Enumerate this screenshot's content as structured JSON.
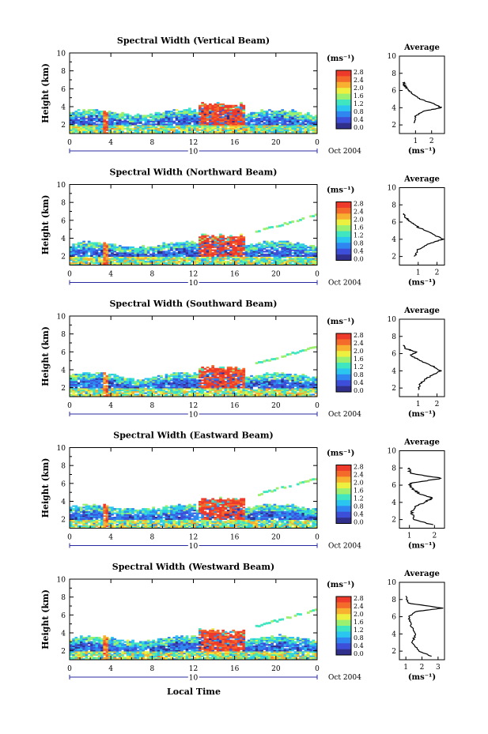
{
  "figure": {
    "xlabel": "Local Time",
    "ylabel": "Height (km)",
    "date_label": "Oct 2004",
    "day_label": "10",
    "units_label": "(ms⁻¹)",
    "profile_title": "Average",
    "profile_xlabel": "(ms⁻¹)",
    "x_ticks": [
      "0",
      "4",
      "8",
      "12",
      "16",
      "20",
      "0"
    ],
    "y_ticks": [
      "2",
      "4",
      "6",
      "8",
      "10"
    ],
    "profile_y_ticks": [
      "2",
      "4",
      "6",
      "8",
      "10"
    ],
    "colorbar_ticks": [
      "0.0",
      "0.4",
      "0.8",
      "1.2",
      "1.6",
      "2.0",
      "2.4",
      "2.8"
    ],
    "colors": {
      "scale": [
        "#30308c",
        "#3d4fd8",
        "#2f86f0",
        "#2bc6f0",
        "#40e6c0",
        "#9cf070",
        "#eef040",
        "#f8b030",
        "#f46a2a",
        "#ee3a2a"
      ],
      "clipped": "#ee3a2a"
    }
  },
  "chart_data": [
    {
      "type": "heatmap",
      "title": "Spectral Width (Vertical Beam)",
      "x_range": [
        0,
        24
      ],
      "y_range": [
        1,
        10
      ],
      "z_range": [
        0.0,
        2.8
      ],
      "profile": {
        "title": "Average",
        "x_ticks": [
          "1",
          "2"
        ],
        "x_range": [
          0,
          2.8
        ],
        "points": [
          [
            0.9,
            2.2
          ],
          [
            1.0,
            3.0
          ],
          [
            1.5,
            3.6
          ],
          [
            2.6,
            4.0
          ],
          [
            2.2,
            4.4
          ],
          [
            1.3,
            5.0
          ],
          [
            0.8,
            5.6
          ],
          [
            0.5,
            6.2
          ],
          [
            0.3,
            6.6
          ],
          [
            0.3,
            7.0
          ]
        ]
      }
    },
    {
      "type": "heatmap",
      "title": "Spectral Width (Northward Beam)",
      "x_range": [
        0,
        24
      ],
      "y_range": [
        1,
        10
      ],
      "z_range": [
        0.0,
        2.8
      ],
      "profile": {
        "title": "Average",
        "x_ticks": [
          "1",
          "2"
        ],
        "x_range": [
          0,
          2.4
        ],
        "points": [
          [
            0.8,
            2.0
          ],
          [
            1.0,
            2.8
          ],
          [
            1.6,
            3.5
          ],
          [
            2.3,
            4.0
          ],
          [
            1.8,
            4.6
          ],
          [
            1.0,
            5.4
          ],
          [
            0.6,
            6.0
          ],
          [
            0.3,
            6.6
          ],
          [
            0.2,
            7.0
          ]
        ]
      }
    },
    {
      "type": "heatmap",
      "title": "Spectral Width (Southward Beam)",
      "x_range": [
        0,
        24
      ],
      "y_range": [
        1,
        10
      ],
      "z_range": [
        0.0,
        2.8
      ],
      "profile": {
        "title": "Average",
        "x_ticks": [
          "1",
          "2"
        ],
        "x_range": [
          0,
          2.4
        ],
        "points": [
          [
            1.0,
            1.8
          ],
          [
            1.1,
            2.5
          ],
          [
            1.5,
            3.2
          ],
          [
            2.2,
            4.0
          ],
          [
            1.8,
            4.5
          ],
          [
            1.1,
            5.2
          ],
          [
            0.6,
            5.8
          ],
          [
            0.9,
            6.2
          ],
          [
            0.3,
            6.6
          ],
          [
            0.2,
            7.0
          ]
        ]
      }
    },
    {
      "type": "heatmap",
      "title": "Spectral Width (Eastward Beam)",
      "x_range": [
        0,
        24
      ],
      "y_range": [
        1,
        10
      ],
      "z_range": [
        0.0,
        2.8
      ],
      "profile": {
        "title": "Average",
        "x_ticks": [
          "1",
          "2"
        ],
        "x_range": [
          0.6,
          2.4
        ],
        "points": [
          [
            1.9,
            1.4
          ],
          [
            1.2,
            2.0
          ],
          [
            1.1,
            2.8
          ],
          [
            1.2,
            3.5
          ],
          [
            1.6,
            4.0
          ],
          [
            1.9,
            4.5
          ],
          [
            1.4,
            5.0
          ],
          [
            1.1,
            5.6
          ],
          [
            1.0,
            6.2
          ],
          [
            2.3,
            6.8
          ],
          [
            1.0,
            7.4
          ],
          [
            1.0,
            8.0
          ]
        ]
      }
    },
    {
      "type": "heatmap",
      "title": "Spectral Width (Westward Beam)",
      "x_range": [
        0,
        24
      ],
      "y_range": [
        1,
        10
      ],
      "z_range": [
        0.0,
        2.8
      ],
      "profile": {
        "title": "Average",
        "x_ticks": [
          "1",
          "2",
          "3"
        ],
        "x_range": [
          0.6,
          3.4
        ],
        "points": [
          [
            2.6,
            1.4
          ],
          [
            1.8,
            2.0
          ],
          [
            1.4,
            3.0
          ],
          [
            1.6,
            4.0
          ],
          [
            1.3,
            5.0
          ],
          [
            1.2,
            6.0
          ],
          [
            1.6,
            6.6
          ],
          [
            3.3,
            7.0
          ],
          [
            1.1,
            7.6
          ],
          [
            1.0,
            8.4
          ]
        ]
      }
    }
  ]
}
